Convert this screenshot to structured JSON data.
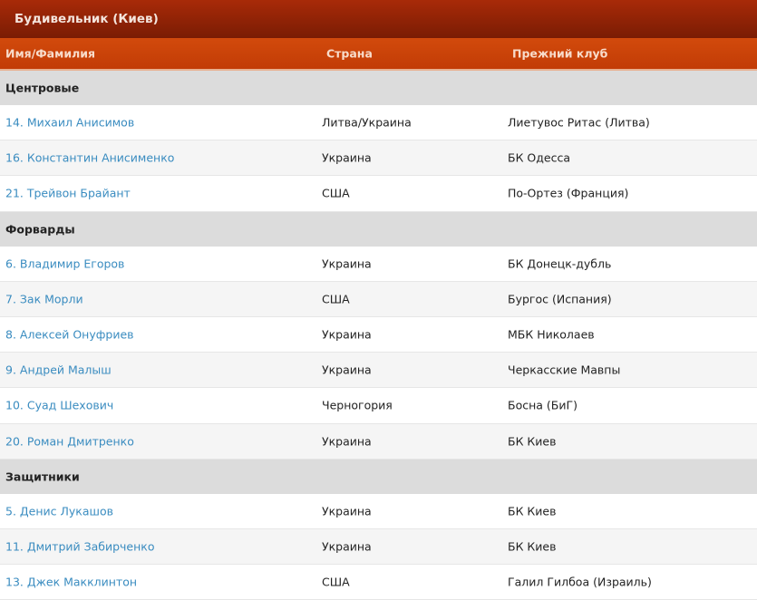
{
  "title": "Будивельник (Киев)",
  "columns": [
    "Имя/Фамилия",
    "Страна",
    "Прежний клуб"
  ],
  "groups": [
    {
      "label": "Центровые",
      "players": [
        {
          "name": "14. Михаил Анисимов",
          "country": "Литва/Украина",
          "club": "Лиетувос Ритас (Литва)"
        },
        {
          "name": "16. Константин Анисименко",
          "country": "Украина",
          "club": "БК Одесса"
        },
        {
          "name": "21. Трейвон Брайант",
          "country": "США",
          "club": "По-Ортез (Франция)"
        }
      ]
    },
    {
      "label": "Форварды",
      "players": [
        {
          "name": "6. Владимир Егоров",
          "country": "Украина",
          "club": "БК Донецк-дубль"
        },
        {
          "name": "7. Зак Морли",
          "country": "США",
          "club": "Бургос (Испания)"
        },
        {
          "name": "8. Алексей Онуфриев",
          "country": "Украина",
          "club": "МБК Николаев"
        },
        {
          "name": "9. Андрей Малыш",
          "country": "Украина",
          "club": "Черкасские Мавпы"
        },
        {
          "name": "10. Суад Шехович",
          "country": "Черногория",
          "club": "Босна (БиГ)"
        },
        {
          "name": "20. Роман Дмитренко",
          "country": "Украина",
          "club": "БК Киев"
        }
      ]
    },
    {
      "label": "Защитники",
      "players": [
        {
          "name": "5. Денис Лукашов",
          "country": "Украина",
          "club": "БК Киев"
        },
        {
          "name": "11. Дмитрий Забирченко",
          "country": "Украина",
          "club": "БК Киев"
        },
        {
          "name": "13. Джек Макклинтон",
          "country": "США",
          "club": "Галил Гилбоа (Израиль)"
        }
      ]
    }
  ]
}
